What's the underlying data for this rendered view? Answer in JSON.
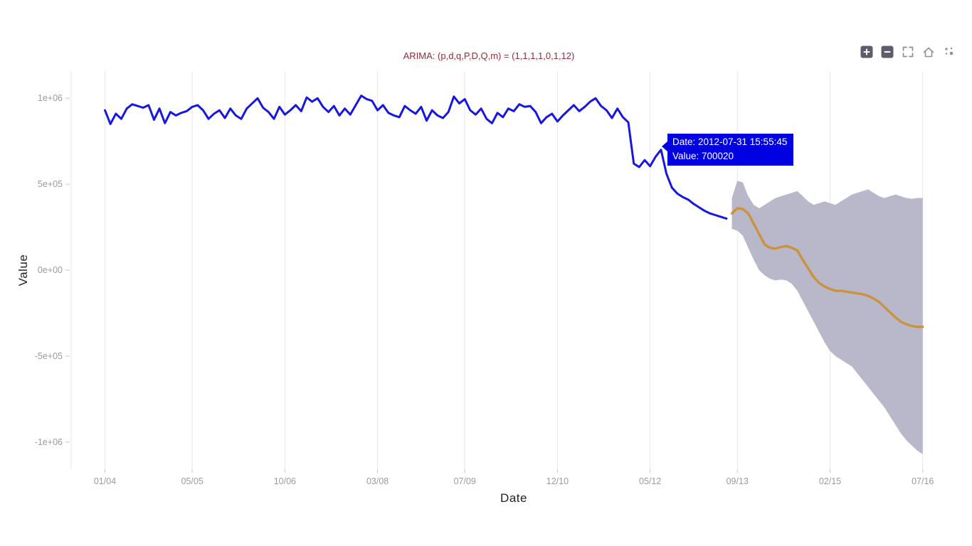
{
  "title": {
    "text": "ARIMA: (p,d,q,P,D,Q,m) = (1,1,1,1,0,1,12)",
    "color": "#8f2d3e"
  },
  "axes": {
    "x_label": "Date",
    "y_label": "Value"
  },
  "toolbar": {
    "icons": [
      "zoom-in-icon",
      "zoom-out-icon",
      "fullscreen-icon",
      "home-icon",
      "logo-dots-icon"
    ]
  },
  "tooltip": {
    "date_label": "Date: 2012-07-31 15:55:45",
    "value_label": "Value: 700020",
    "bg": "#0000e0"
  },
  "chart_data": {
    "type": "line",
    "title": "ARIMA: (p,d,q,P,D,Q,m) = (1,1,1,1,0,1,12)",
    "xlabel": "Date",
    "ylabel": "Value",
    "x_unit": "month",
    "x_start_date": "2004-01",
    "xlim_months": [
      -6.2,
      156.3
    ],
    "ylim": [
      -1158000,
      1158000
    ],
    "grid": "vertical-only",
    "legend": "none",
    "colors": {
      "grid": "#e8e8ec",
      "tick_label": "#9a9aa2",
      "tick_mark": "#c6c6cc",
      "axis_label": "#222222"
    },
    "x_ticks": [
      {
        "label": "01/04",
        "month": 0
      },
      {
        "label": "05/05",
        "month": 16
      },
      {
        "label": "10/06",
        "month": 33
      },
      {
        "label": "03/08",
        "month": 50
      },
      {
        "label": "07/09",
        "month": 66
      },
      {
        "label": "12/10",
        "month": 83
      },
      {
        "label": "05/12",
        "month": 100
      },
      {
        "label": "09/13",
        "month": 116
      },
      {
        "label": "02/15",
        "month": 133
      },
      {
        "label": "07/16",
        "month": 150
      }
    ],
    "y_ticks": [
      {
        "label": "1e+06",
        "value": 1000000
      },
      {
        "label": "5e+05",
        "value": 500000
      },
      {
        "label": "0e+00",
        "value": 0
      },
      {
        "label": "-5e+05",
        "value": -500000
      },
      {
        "label": "-1e+06",
        "value": -1000000
      }
    ],
    "series": [
      {
        "name": "observed",
        "color": "#1717dd",
        "stroke_width": 3,
        "start_month": 0,
        "values": [
          930000,
          850000,
          910000,
          880000,
          940000,
          965000,
          955000,
          945000,
          960000,
          875000,
          940000,
          855000,
          920000,
          900000,
          915000,
          925000,
          950000,
          960000,
          930000,
          880000,
          910000,
          930000,
          885000,
          940000,
          900000,
          880000,
          940000,
          970000,
          1000000,
          945000,
          920000,
          880000,
          950000,
          905000,
          930000,
          960000,
          925000,
          1005000,
          980000,
          1000000,
          950000,
          920000,
          955000,
          900000,
          940000,
          905000,
          960000,
          1015000,
          995000,
          985000,
          930000,
          960000,
          915000,
          900000,
          890000,
          955000,
          930000,
          910000,
          950000,
          870000,
          930000,
          900000,
          885000,
          920000,
          1010000,
          970000,
          995000,
          930000,
          905000,
          940000,
          880000,
          855000,
          915000,
          890000,
          940000,
          925000,
          965000,
          950000,
          955000,
          920000,
          855000,
          890000,
          910000,
          865000,
          900000,
          930000,
          960000,
          925000,
          950000,
          980000,
          1000000,
          955000,
          930000,
          885000,
          940000,
          890000,
          860000,
          620000,
          600000,
          640000,
          605000,
          660000,
          700020,
          560000,
          480000,
          445000,
          425000,
          410000,
          385000,
          365000,
          345000,
          330000,
          320000,
          310000,
          300000
        ]
      },
      {
        "name": "forecast",
        "color": "#c99440",
        "stroke_width": 3.5,
        "start_month": 115,
        "values": [
          330000,
          360000,
          355000,
          330000,
          270000,
          210000,
          150000,
          130000,
          125000,
          135000,
          140000,
          130000,
          115000,
          60000,
          10000,
          -40000,
          -75000,
          -95000,
          -110000,
          -120000,
          -120000,
          -125000,
          -130000,
          -135000,
          -140000,
          -150000,
          -165000,
          -185000,
          -215000,
          -245000,
          -275000,
          -300000,
          -315000,
          -325000,
          -330000,
          -330000
        ]
      }
    ],
    "band": {
      "name": "forecast-confidence-interval",
      "color": "#b5b4c8",
      "start_month": 115,
      "upper": [
        420000,
        520000,
        510000,
        430000,
        380000,
        360000,
        380000,
        400000,
        420000,
        430000,
        440000,
        450000,
        460000,
        430000,
        400000,
        380000,
        390000,
        400000,
        390000,
        380000,
        400000,
        420000,
        440000,
        450000,
        460000,
        470000,
        450000,
        430000,
        420000,
        430000,
        440000,
        430000,
        420000,
        415000,
        420000,
        420000
      ],
      "lower": [
        240000,
        230000,
        200000,
        130000,
        60000,
        0,
        -30000,
        -50000,
        -60000,
        -55000,
        -60000,
        -80000,
        -120000,
        -180000,
        -240000,
        -300000,
        -360000,
        -420000,
        -470000,
        -500000,
        -520000,
        -540000,
        -560000,
        -600000,
        -640000,
        -680000,
        -720000,
        -760000,
        -800000,
        -850000,
        -900000,
        -950000,
        -990000,
        -1020000,
        -1050000,
        -1070000
      ]
    },
    "hover_point": {
      "month": 102,
      "value": 700020,
      "date": "2012-07-31 15:55:45"
    }
  }
}
